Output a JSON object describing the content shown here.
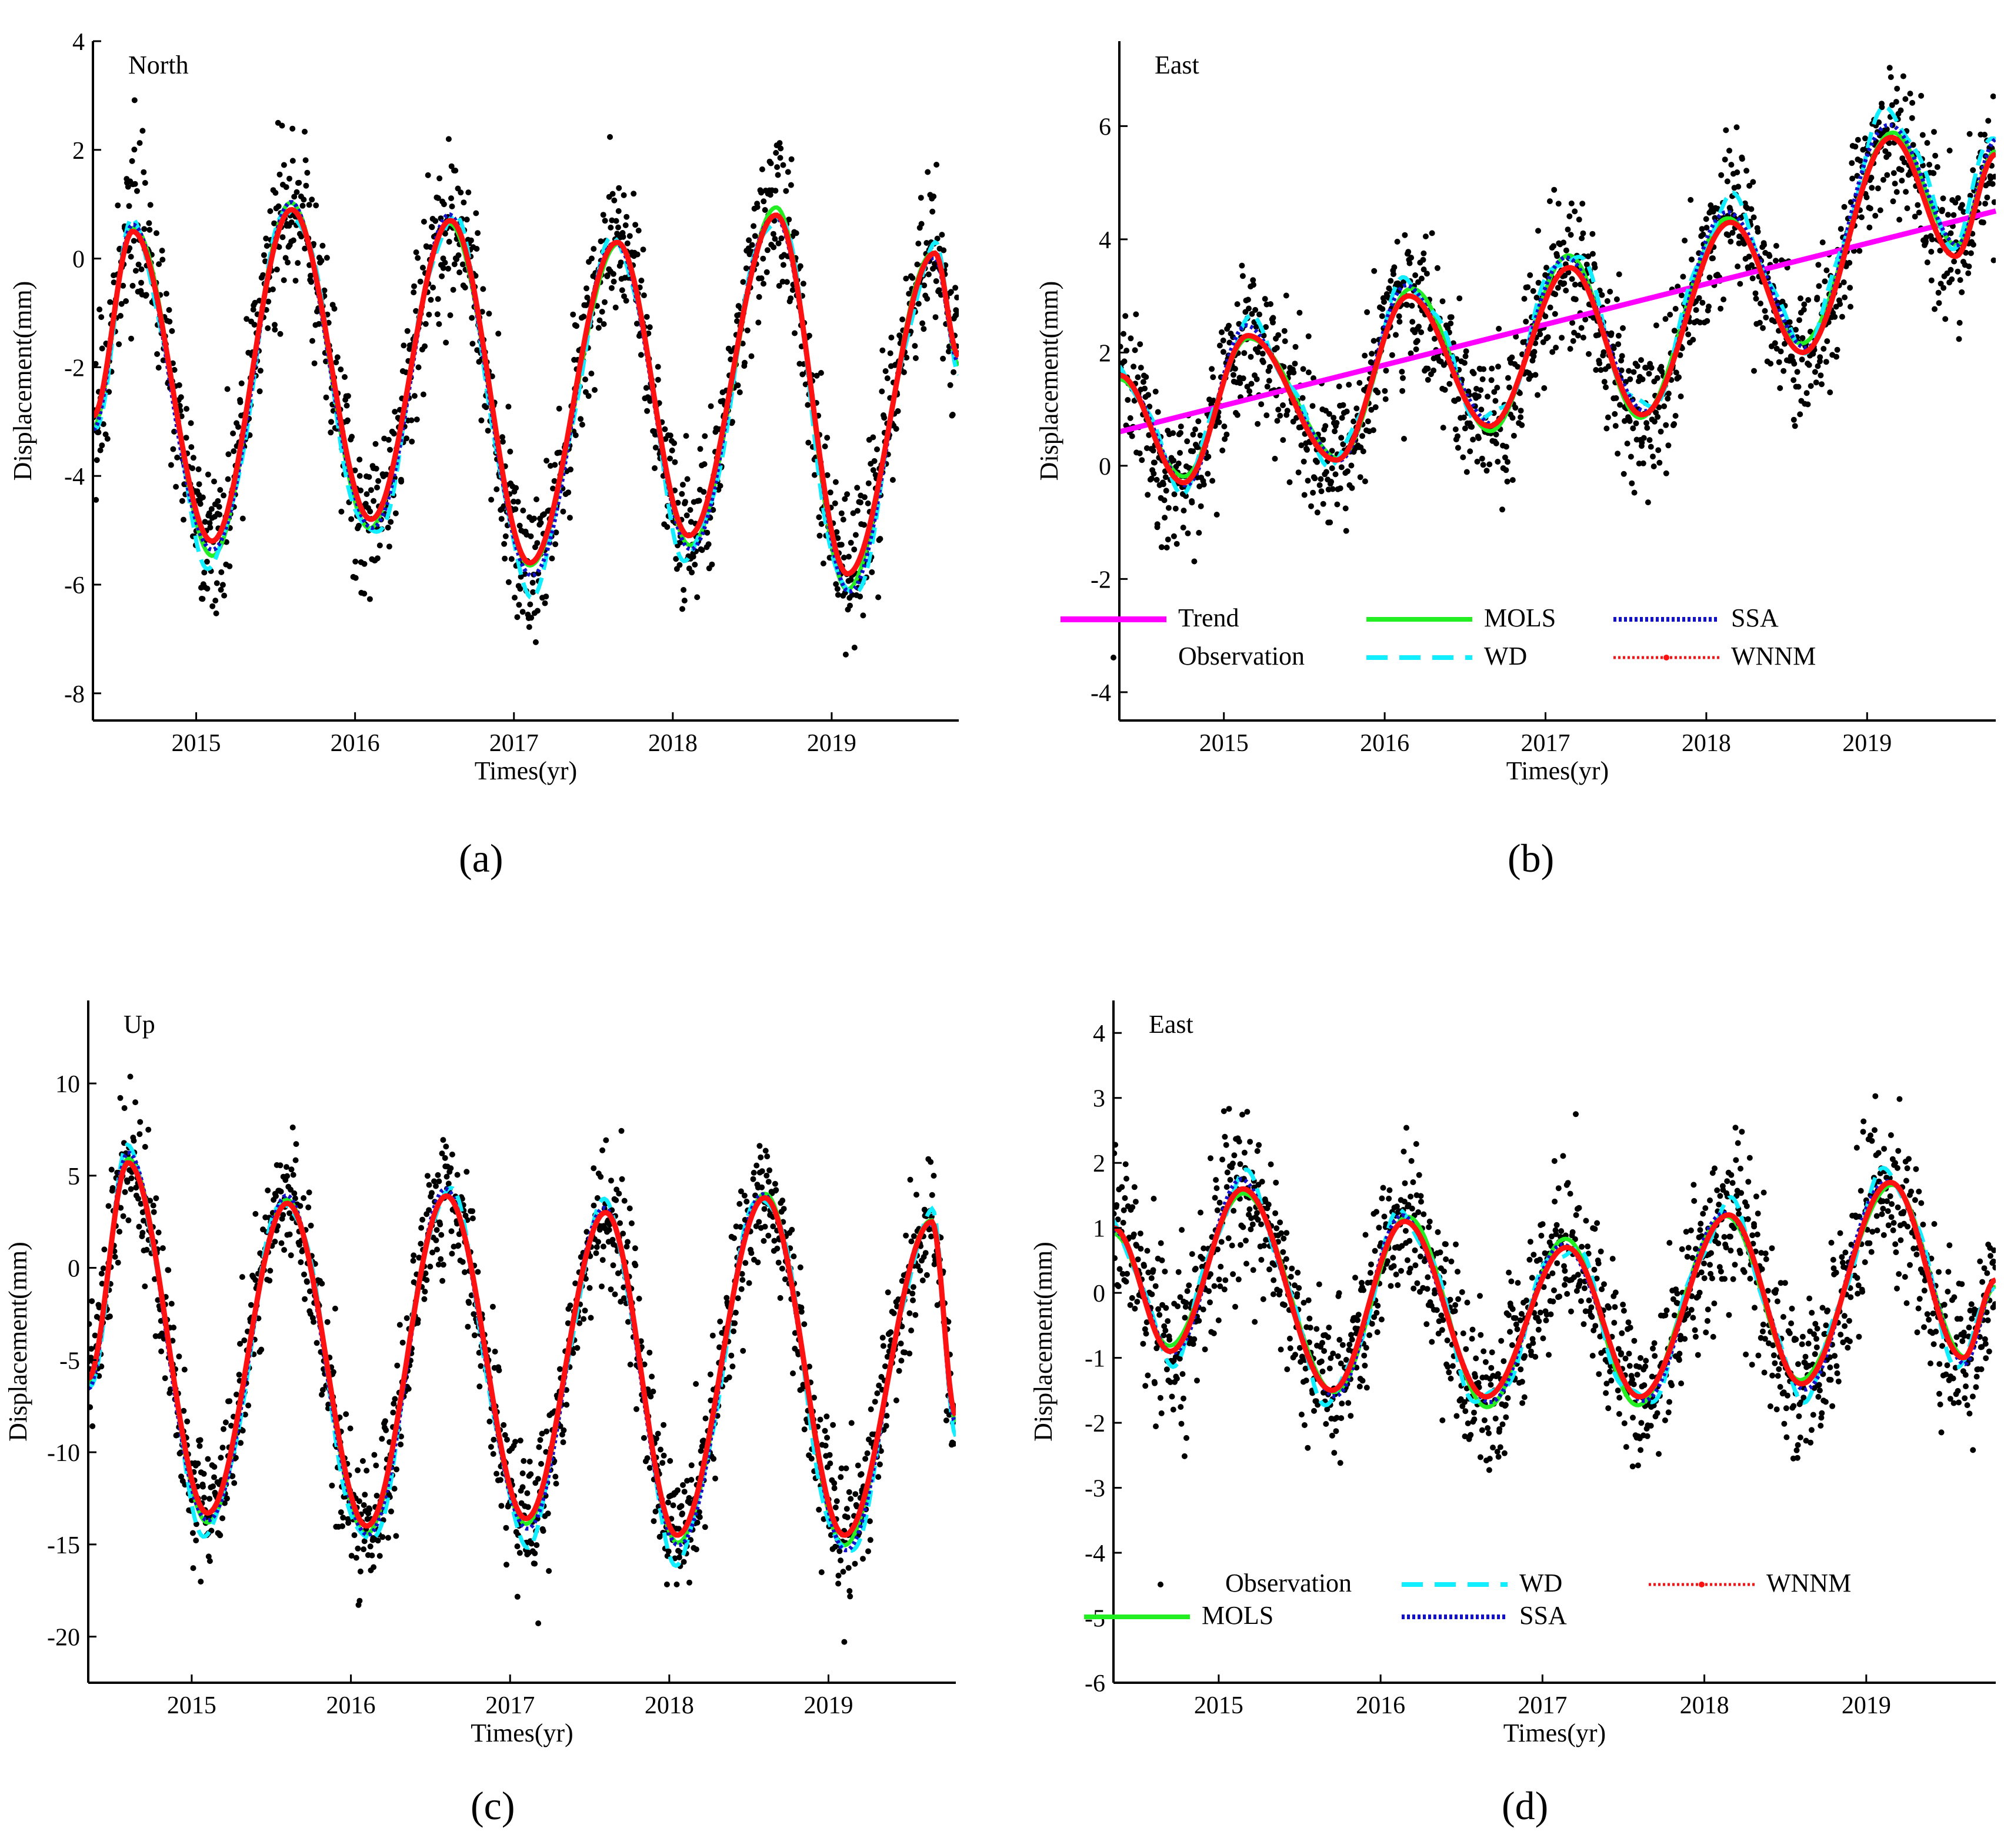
{
  "figure": {
    "colors": {
      "observation": "#000000",
      "trend": "#ff00ff",
      "mols": "#22ee22",
      "wd": "#11eeff",
      "ssa": "#1111cc",
      "wnnm": "#ff1111"
    }
  },
  "chart_data": [
    {
      "type": "line",
      "panel_label": "(a)",
      "title": "North",
      "xlabel": "Times(yr)",
      "ylabel": "Displacement(mm)",
      "xlim": [
        2014.35,
        2019.8
      ],
      "ylim": [
        -8.5,
        4
      ],
      "xticks": [
        2015,
        2016,
        2017,
        2018,
        2019
      ],
      "xtick_labels": [
        "2015",
        "2016",
        "2017",
        "2018",
        "2019"
      ],
      "yticks": [
        -8,
        -6,
        -4,
        -2,
        0,
        2,
        4
      ],
      "ytick_labels": [
        "-8",
        "-6",
        "-4",
        "-2",
        "0",
        "2",
        "4"
      ],
      "series": [
        {
          "name": "Observation",
          "key": "observation",
          "style": "dots"
        },
        {
          "name": "MOLS",
          "key": "mols",
          "style": "solid"
        },
        {
          "name": "WD",
          "key": "wd",
          "style": "dash"
        },
        {
          "name": "SSA",
          "key": "ssa",
          "style": "dot"
        },
        {
          "name": "WNNM",
          "key": "wnnm",
          "style": "solid-thick"
        }
      ],
      "signal": {
        "troughs": [
          [
            2015.1,
            -5.2
          ],
          [
            2016.1,
            -4.8
          ],
          [
            2017.1,
            -5.6
          ],
          [
            2018.1,
            -5.1
          ],
          [
            2019.1,
            -5.8
          ]
        ],
        "peaks": [
          [
            2014.6,
            0.5
          ],
          [
            2015.6,
            0.9
          ],
          [
            2016.6,
            0.7
          ],
          [
            2017.65,
            0.3
          ],
          [
            2018.65,
            0.8
          ],
          [
            2019.65,
            0.1
          ]
        ],
        "start": [
          2014.35,
          -2.9
        ],
        "end": [
          2019.8,
          -1.8
        ],
        "scatter_sd": 0.85
      },
      "legend": null
    },
    {
      "type": "line",
      "panel_label": "(b)",
      "title": "East",
      "xlabel": "Times(yr)",
      "ylabel": "Displacement(mm)",
      "xlim": [
        2014.35,
        2019.8
      ],
      "ylim": [
        -4.5,
        7.5
      ],
      "xticks": [
        2015,
        2016,
        2017,
        2018,
        2019
      ],
      "xtick_labels": [
        "2015",
        "2016",
        "2017",
        "2018",
        "2019"
      ],
      "yticks": [
        -4,
        -2,
        0,
        2,
        4,
        6
      ],
      "ytick_labels": [
        "-4",
        "-2",
        "0",
        "2",
        "4",
        "6"
      ],
      "series": [
        {
          "name": "Trend",
          "key": "trend",
          "style": "solid-thick"
        },
        {
          "name": "MOLS",
          "key": "mols",
          "style": "solid"
        },
        {
          "name": "SSA",
          "key": "ssa",
          "style": "dot"
        },
        {
          "name": "Observation",
          "key": "observation",
          "style": "dots"
        },
        {
          "name": "WD",
          "key": "wd",
          "style": "dash"
        },
        {
          "name": "WNNM",
          "key": "wnnm",
          "style": "dotted-marker"
        }
      ],
      "trend": {
        "x": [
          2014.35,
          2019.8
        ],
        "y": [
          0.6,
          4.5
        ]
      },
      "signal": {
        "troughs": [
          [
            2014.75,
            -0.3
          ],
          [
            2015.7,
            0.1
          ],
          [
            2016.65,
            0.7
          ],
          [
            2017.6,
            0.9
          ],
          [
            2018.6,
            2.0
          ],
          [
            2019.55,
            3.7
          ]
        ],
        "peaks": [
          [
            2015.15,
            2.3
          ],
          [
            2016.15,
            3.0
          ],
          [
            2017.15,
            3.5
          ],
          [
            2018.15,
            4.3
          ],
          [
            2019.15,
            5.8
          ]
        ],
        "start": [
          2014.35,
          1.6
        ],
        "end": [
          2019.8,
          5.5
        ],
        "scatter_sd": 0.75
      },
      "legend": {
        "position": "bottom-center",
        "rows": 2
      }
    },
    {
      "type": "line",
      "panel_label": "(c)",
      "title": "Up",
      "xlabel": "Times(yr)",
      "ylabel": "Displacement(mm)",
      "xlim": [
        2014.35,
        2019.8
      ],
      "ylim": [
        -22.5,
        14.5
      ],
      "xticks": [
        2015,
        2016,
        2017,
        2018,
        2019
      ],
      "xtick_labels": [
        "2015",
        "2016",
        "2017",
        "2018",
        "2019"
      ],
      "yticks": [
        -20,
        -15,
        -10,
        -5,
        0,
        5,
        10
      ],
      "ytick_labels": [
        "-20",
        "-15",
        "-10",
        "-5",
        "0",
        "5",
        "10"
      ],
      "series": [
        {
          "name": "Observation",
          "key": "observation",
          "style": "dots"
        },
        {
          "name": "MOLS",
          "key": "mols",
          "style": "solid"
        },
        {
          "name": "WD",
          "key": "wd",
          "style": "dash"
        },
        {
          "name": "SSA",
          "key": "ssa",
          "style": "dot"
        },
        {
          "name": "WNNM",
          "key": "wnnm",
          "style": "solid-thick"
        }
      ],
      "signal": {
        "troughs": [
          [
            2015.1,
            -13.3
          ],
          [
            2016.1,
            -14.0
          ],
          [
            2017.1,
            -13.6
          ],
          [
            2018.05,
            -14.5
          ],
          [
            2019.1,
            -14.5
          ]
        ],
        "peaks": [
          [
            2014.6,
            5.7
          ],
          [
            2015.6,
            3.5
          ],
          [
            2016.6,
            3.9
          ],
          [
            2017.6,
            3.0
          ],
          [
            2018.6,
            3.8
          ],
          [
            2019.65,
            2.5
          ]
        ],
        "start": [
          2014.35,
          -6.0
        ],
        "end": [
          2019.8,
          -8.0
        ],
        "scatter_sd": 2.2
      },
      "legend": null
    },
    {
      "type": "line",
      "panel_label": "(d)",
      "title": "East",
      "xlabel": "Times(yr)",
      "ylabel": "Displacement(mm)",
      "xlim": [
        2014.35,
        2019.8
      ],
      "ylim": [
        -6,
        4.5
      ],
      "xticks": [
        2015,
        2016,
        2017,
        2018,
        2019
      ],
      "xtick_labels": [
        "2015",
        "2016",
        "2017",
        "2018",
        "2019"
      ],
      "yticks": [
        -6,
        -5,
        -4,
        -3,
        -2,
        -1,
        0,
        1,
        2,
        3,
        4
      ],
      "ytick_labels": [
        "-6",
        "-5",
        "-4",
        "-3",
        "-2",
        "-1",
        "0",
        "1",
        "2",
        "3",
        "4"
      ],
      "series": [
        {
          "name": "Observation",
          "key": "observation",
          "style": "dots"
        },
        {
          "name": "WD",
          "key": "wd",
          "style": "dash"
        },
        {
          "name": "WNNM",
          "key": "wnnm",
          "style": "dotted-marker"
        },
        {
          "name": "MOLS",
          "key": "mols",
          "style": "solid"
        },
        {
          "name": "SSA",
          "key": "ssa",
          "style": "dot"
        }
      ],
      "signal": {
        "troughs": [
          [
            2014.7,
            -0.9
          ],
          [
            2015.7,
            -1.5
          ],
          [
            2016.65,
            -1.6
          ],
          [
            2017.6,
            -1.6
          ],
          [
            2018.6,
            -1.4
          ],
          [
            2019.6,
            -1.0
          ]
        ],
        "peaks": [
          [
            2015.15,
            1.6
          ],
          [
            2016.15,
            1.1
          ],
          [
            2017.15,
            0.7
          ],
          [
            2018.15,
            1.2
          ],
          [
            2019.15,
            1.7
          ]
        ],
        "start": [
          2014.35,
          1.0
        ],
        "end": [
          2019.8,
          0.2
        ],
        "scatter_sd": 0.75
      },
      "legend": {
        "position": "bottom-center",
        "rows": 2
      }
    }
  ]
}
